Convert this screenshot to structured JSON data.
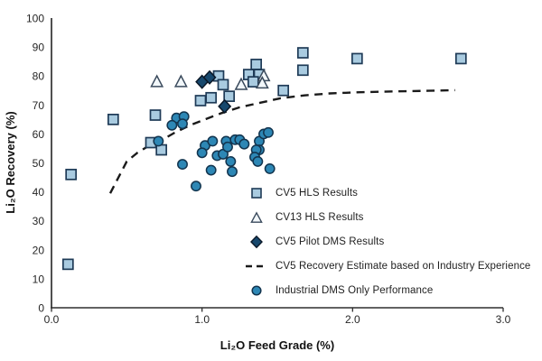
{
  "chart": {
    "x_axis": {
      "title": "Li₂O Feed Grade (%)",
      "tick_values": [
        0,
        1,
        2,
        3
      ],
      "tick_labels": [
        "0.0",
        "1.0",
        "2.0",
        "3.0"
      ],
      "line_color": "#404040"
    },
    "y_axis": {
      "title": "Li₂O Recovery (%)",
      "ticks": [
        "0",
        "10",
        "20",
        "30",
        "40",
        "50",
        "60",
        "70",
        "80",
        "90",
        "100"
      ],
      "line_color": "#595959"
    }
  },
  "chart_data": {
    "type": "scatter",
    "title": "",
    "xlabel": "Li₂O Feed Grade (%)",
    "ylabel": "Li₂O Recovery (%)",
    "xlim": [
      0,
      3
    ],
    "ylim": [
      0,
      100
    ],
    "grid": false,
    "legend_position": "inside-lower-right",
    "series": [
      {
        "name": "CV5 HLS Results",
        "marker": "square",
        "fill": "#a9cbe0",
        "stroke": "#1f3b57",
        "points": [
          [
            0.13,
            46
          ],
          [
            0.11,
            15
          ],
          [
            0.41,
            65
          ],
          [
            0.66,
            57
          ],
          [
            0.69,
            66.5
          ],
          [
            0.73,
            54.5
          ],
          [
            0.99,
            71.5
          ],
          [
            1.06,
            72.5
          ],
          [
            1.18,
            73
          ],
          [
            1.11,
            80
          ],
          [
            1.14,
            77
          ],
          [
            1.31,
            80.5
          ],
          [
            1.38,
            80.5
          ],
          [
            1.36,
            84
          ],
          [
            1.34,
            78
          ],
          [
            1.54,
            75
          ],
          [
            1.67,
            88
          ],
          [
            1.67,
            82
          ],
          [
            2.03,
            86
          ],
          [
            2.72,
            86
          ]
        ]
      },
      {
        "name": "CV13 HLS Results",
        "marker": "triangle",
        "fill": "#f2f7fa",
        "stroke": "#3a4a5c",
        "points": [
          [
            0.7,
            78
          ],
          [
            0.86,
            78
          ],
          [
            1.26,
            77
          ],
          [
            1.41,
            80
          ],
          [
            1.4,
            77.5
          ]
        ]
      },
      {
        "name": "CV5 Pilot DMS Results",
        "marker": "diamond",
        "fill": "#17486d",
        "stroke": "#0a1828",
        "points": [
          [
            1.0,
            78
          ],
          [
            1.05,
            79.5
          ],
          [
            1.15,
            69.5
          ]
        ]
      },
      {
        "name": "CV5 Recovery Estimate based on Industry Experience",
        "marker": "dashed-line",
        "stroke": "#1a1a1a",
        "points": [
          [
            0.39,
            39.5
          ],
          [
            0.44,
            44.5
          ],
          [
            0.5,
            50.5
          ],
          [
            0.57,
            53.5
          ],
          [
            0.65,
            56
          ],
          [
            0.73,
            57.8
          ],
          [
            0.82,
            60.5
          ],
          [
            0.92,
            63
          ],
          [
            1.02,
            65
          ],
          [
            1.13,
            67.2
          ],
          [
            1.25,
            69.2
          ],
          [
            1.38,
            70.7
          ],
          [
            1.52,
            72.3
          ],
          [
            1.68,
            73.3
          ],
          [
            1.85,
            74
          ],
          [
            2.05,
            74.4
          ],
          [
            2.3,
            74.7
          ],
          [
            2.5,
            74.9
          ],
          [
            2.68,
            75.1
          ]
        ]
      },
      {
        "name": "Industrial DMS Only Performance",
        "marker": "circle",
        "fill": "#2d87b5",
        "stroke": "#12344e",
        "points": [
          [
            0.83,
            65.5
          ],
          [
            0.88,
            66
          ],
          [
            0.8,
            63
          ],
          [
            0.87,
            63.5
          ],
          [
            0.71,
            57.5
          ],
          [
            0.87,
            49.5
          ],
          [
            0.96,
            42
          ],
          [
            1.02,
            56
          ],
          [
            1.07,
            57.5
          ],
          [
            1.0,
            53.5
          ],
          [
            1.1,
            52.5
          ],
          [
            1.14,
            53
          ],
          [
            1.16,
            57.5
          ],
          [
            1.17,
            55.5
          ],
          [
            1.22,
            58
          ],
          [
            1.25,
            58
          ],
          [
            1.19,
            50.5
          ],
          [
            1.06,
            47.5
          ],
          [
            1.2,
            47
          ],
          [
            1.28,
            56.5
          ],
          [
            1.38,
            57.5
          ],
          [
            1.41,
            60
          ],
          [
            1.44,
            60.5
          ],
          [
            1.38,
            54.5
          ],
          [
            1.36,
            54.5
          ],
          [
            1.35,
            52
          ],
          [
            1.37,
            50.5
          ],
          [
            1.45,
            48
          ]
        ]
      }
    ]
  }
}
